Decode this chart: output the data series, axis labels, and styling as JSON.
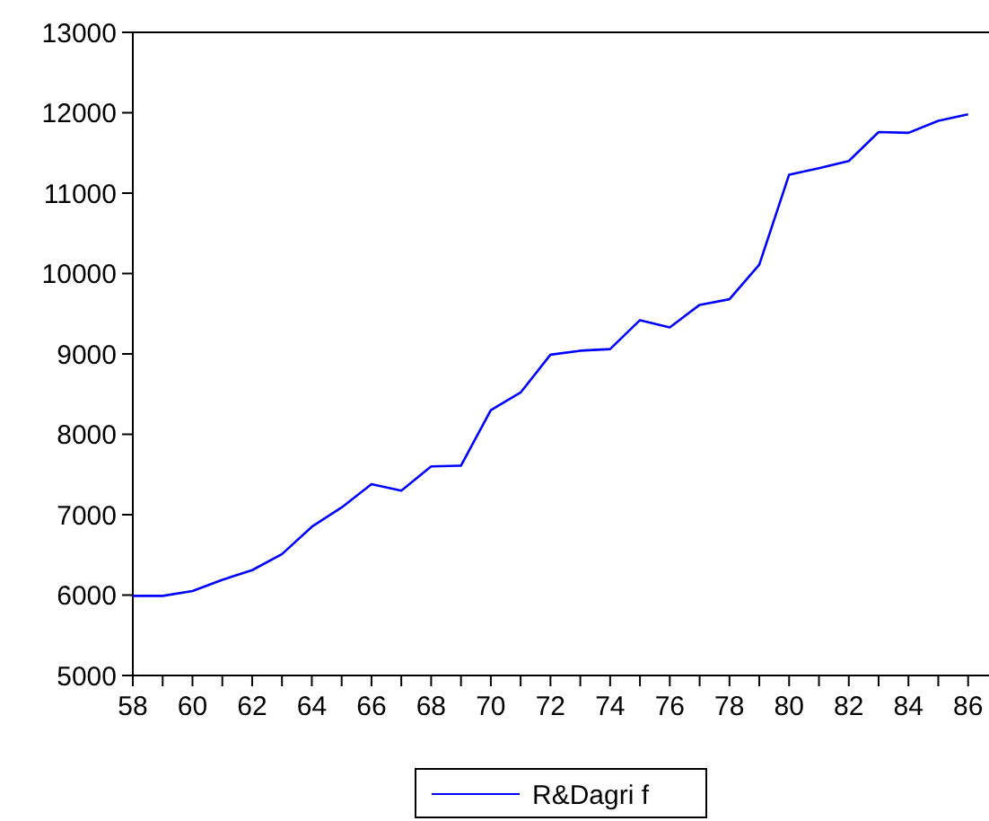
{
  "chart_data": {
    "type": "line",
    "x": [
      58,
      59,
      60,
      61,
      62,
      63,
      64,
      65,
      66,
      67,
      68,
      69,
      70,
      71,
      72,
      73,
      74,
      75,
      76,
      77,
      78,
      79,
      80,
      81,
      82,
      83,
      84,
      85,
      86
    ],
    "series": [
      {
        "name": "R&Dagri f",
        "color": "#0000ff",
        "values": [
          5990,
          5990,
          6050,
          6190,
          6310,
          6510,
          6850,
          7090,
          7380,
          7300,
          7600,
          7610,
          8300,
          8520,
          8990,
          9040,
          9060,
          9420,
          9330,
          9610,
          9680,
          10110,
          11230,
          11310,
          11400,
          11760,
          11750,
          11900,
          11980
        ]
      }
    ],
    "xlim": [
      58,
      86.7
    ],
    "xticks": [
      58,
      {
        "value": 59,
        "label": null
      },
      60,
      {
        "value": 61,
        "label": null
      },
      62,
      {
        "value": 63,
        "label": null
      },
      64,
      {
        "value": 65,
        "label": null
      },
      66,
      {
        "value": 67,
        "label": null
      },
      68,
      {
        "value": 69,
        "label": null
      },
      70,
      {
        "value": 71,
        "label": null
      },
      72,
      {
        "value": 73,
        "label": null
      },
      74,
      {
        "value": 75,
        "label": null
      },
      76,
      {
        "value": 77,
        "label": null
      },
      78,
      {
        "value": 79,
        "label": null
      },
      80,
      {
        "value": 81,
        "label": null
      },
      82,
      {
        "value": 83,
        "label": null
      },
      84,
      {
        "value": 85,
        "label": null
      },
      86
    ],
    "ylim": [
      5000,
      13000
    ],
    "yticks": [
      5000,
      6000,
      7000,
      8000,
      9000,
      10000,
      11000,
      12000,
      13000
    ],
    "legend": "bottom",
    "grid": false,
    "marker": "none",
    "line_style": "solid"
  }
}
